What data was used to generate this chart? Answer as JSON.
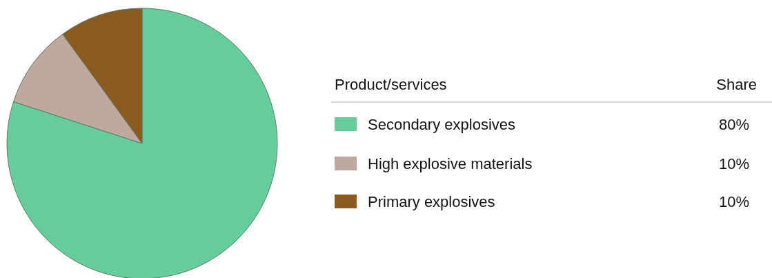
{
  "chart_data": {
    "type": "pie",
    "legend_title": "Product/services",
    "annotations": [
      "Share"
    ],
    "legend": "right",
    "categories": [
      "Secondary explosives",
      "High explosive materials",
      "Primary explosives"
    ],
    "values": [
      80,
      10,
      10
    ],
    "colors": [
      "#66cc99",
      "#bfa89e",
      "#8b5a1e"
    ],
    "value_labels": [
      "80%",
      "10%",
      "10%"
    ]
  }
}
